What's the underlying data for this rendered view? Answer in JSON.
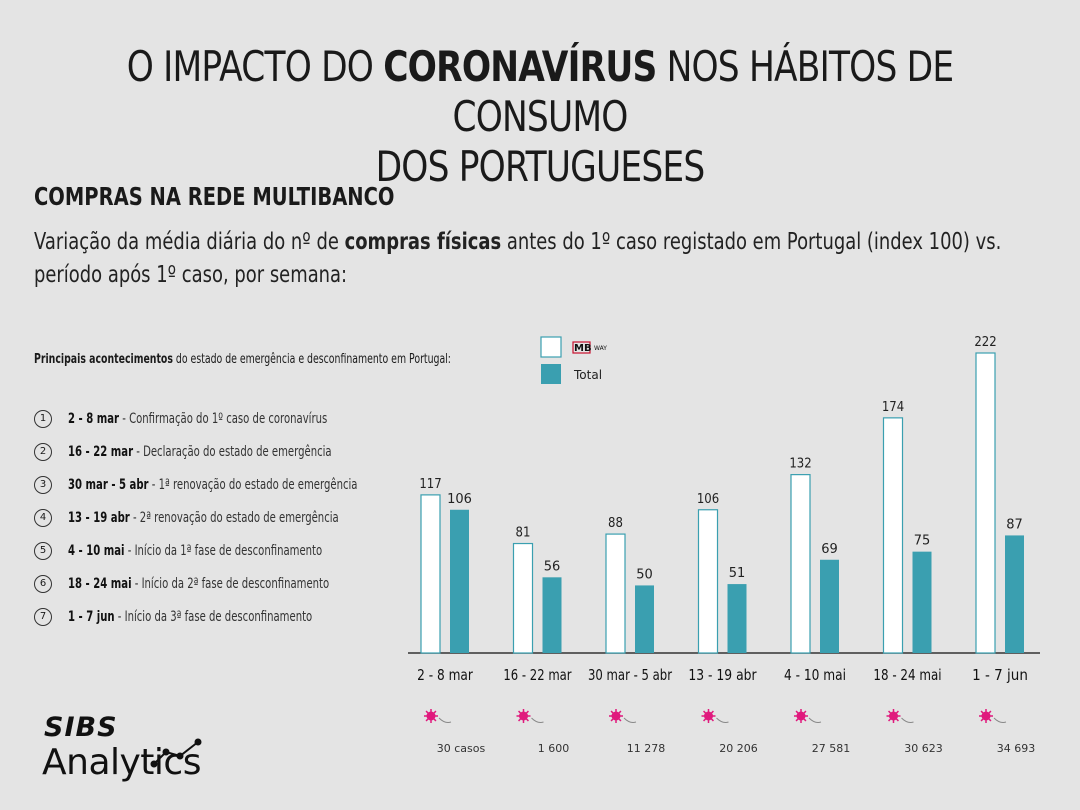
{
  "title": {
    "line1_pre": "O IMPACTO DO ",
    "line1_bold": "CORONAVÍRUS",
    "line1_post": " NOS HÁBITOS DE CONSUMO",
    "line2": "DOS PORTUGUESES"
  },
  "section_title": "COMPRAS NA REDE MULTIBANCO",
  "description": {
    "pre": "Variação da média diária do nº de ",
    "bold": "compras físicas",
    "post": " antes do 1º caso registado em Portugal (index 100) vs. período após 1º caso, por semana:"
  },
  "events_heading": {
    "bold": "Principais acontecimentos",
    "rest": " do estado de emergência e desconfinamento em Portugal:"
  },
  "events": [
    {
      "num": "1",
      "period": "2 - 8 mar",
      "text": " - Confirmação do 1º caso de coronavírus"
    },
    {
      "num": "2",
      "period": "16 - 22 mar",
      "text": " - Declaração do estado de emergência"
    },
    {
      "num": "3",
      "period": "30 mar - 5 abr",
      "text": " - 1ª renovação do estado de emergência"
    },
    {
      "num": "4",
      "period": "13 - 19 abr",
      "text": " - 2ª renovação do estado de emergência"
    },
    {
      "num": "5",
      "period": "4 - 10 mai",
      "text": " - Início da 1ª fase de desconfinamento"
    },
    {
      "num": "6",
      "period": "18 - 24 mai",
      "text": " - Início da 2ª fase de desconfinamento"
    },
    {
      "num": "7",
      "period": "1 - 7 jun",
      "text": "  - Início da 3ª fase de desconfinamento"
    }
  ],
  "chart_data": {
    "type": "bar",
    "categories": [
      "2 - 8 mar",
      "16 - 22 mar",
      "30 mar - 5 abr",
      "13 - 19 abr",
      "4 - 10 mai",
      "18 - 24 mai",
      "1 - 7 jun"
    ],
    "series": [
      {
        "name": "MB WAY",
        "values": [
          117,
          81,
          88,
          106,
          132,
          174,
          222
        ],
        "style": "outline",
        "color": "#3a9fb0"
      },
      {
        "name": "Total",
        "values": [
          106,
          56,
          50,
          51,
          69,
          75,
          87
        ],
        "style": "filled",
        "color": "#3a9fb0"
      }
    ],
    "legend": {
      "position": "top",
      "mbway_logo_text": "MB",
      "mbway_logo_sub": "WAY",
      "total_label": "Total"
    },
    "cases": [
      "30 casos",
      "1 600",
      "11 278",
      "20 206",
      "27 581",
      "30 623",
      "34 693"
    ],
    "virus_icon_color": "#e0197d",
    "ylim": [
      0,
      230
    ]
  },
  "logo": {
    "brand": "SIBS",
    "product": "Analytics"
  }
}
